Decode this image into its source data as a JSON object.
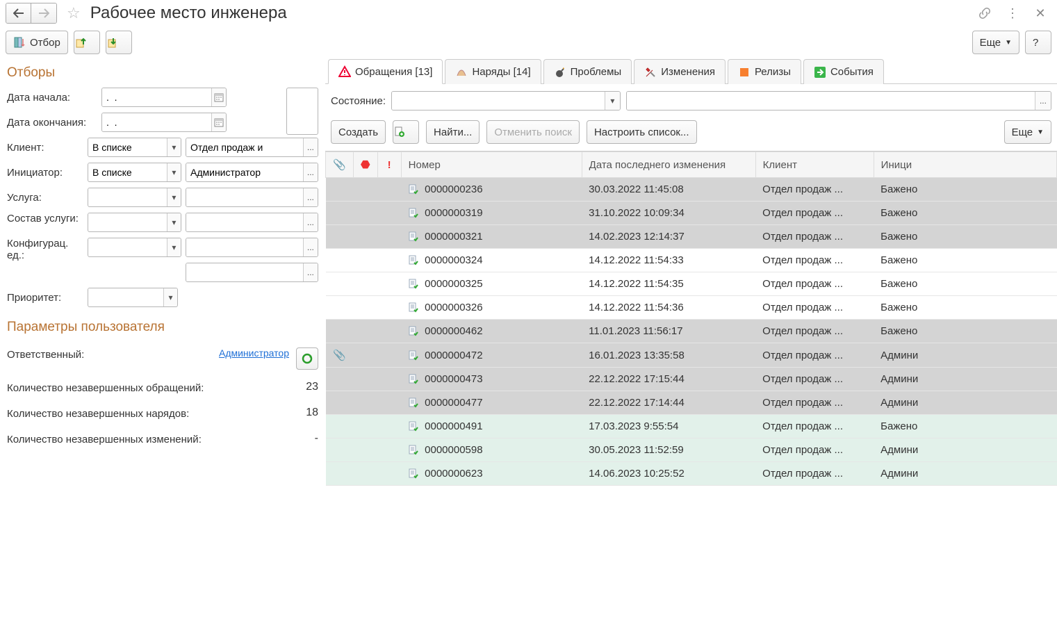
{
  "header": {
    "title": "Рабочее место инженера"
  },
  "toolbar": {
    "filter_btn": "Отбор",
    "more_btn": "Еще",
    "help_btn": "?"
  },
  "filters": {
    "section_title": "Отборы",
    "start_date_label": "Дата начала:",
    "start_date_value": ".  .",
    "end_date_label": "Дата окончания:",
    "end_date_value": ".  .",
    "client_label": "Клиент:",
    "client_mode": "В списке",
    "client_value": "Отдел продаж и",
    "initiator_label": "Инициатор:",
    "initiator_mode": "В списке",
    "initiator_value": "Администратор",
    "service_label": "Услуга:",
    "service_comp_label": "Состав услуги:",
    "config_label": "Конфигурац. ед.:",
    "priority_label": "Приоритет:"
  },
  "params": {
    "section_title": "Параметры пользователя",
    "responsible_label": "Ответственный:",
    "responsible_value": "Администратор",
    "open_tickets_label": "Количество незавершенных обращений:",
    "open_tickets_value": "23",
    "open_orders_label": "Количество незавершенных нарядов:",
    "open_orders_value": "18",
    "open_changes_label": "Количество незавершенных изменений:",
    "open_changes_value": "-"
  },
  "tabs": {
    "tickets": "Обращения [13]",
    "orders": "Наряды [14]",
    "problems": "Проблемы",
    "changes": "Изменения",
    "releases": "Релизы",
    "events": "События"
  },
  "status_bar": {
    "label": "Состояние:"
  },
  "actions": {
    "create": "Создать",
    "find": "Найти...",
    "cancel_search": "Отменить поиск",
    "configure_list": "Настроить список...",
    "more": "Еще"
  },
  "table": {
    "headers": {
      "number": "Номер",
      "last_modified": "Дата последнего изменения",
      "client": "Клиент",
      "initiator": "Иници"
    },
    "rows": [
      {
        "clip": "",
        "num": "0000000236",
        "date": "30.03.2022 11:45:08",
        "client": "Отдел продаж ...",
        "init": "Бажено",
        "cls": "gray"
      },
      {
        "clip": "",
        "num": "0000000319",
        "date": "31.10.2022 10:09:34",
        "client": "Отдел продаж ...",
        "init": "Бажено",
        "cls": "gray"
      },
      {
        "clip": "",
        "num": "0000000321",
        "date": "14.02.2023 12:14:37",
        "client": "Отдел продаж ...",
        "init": "Бажено",
        "cls": "gray"
      },
      {
        "clip": "",
        "num": "0000000324",
        "date": "14.12.2022 11:54:33",
        "client": "Отдел продаж ...",
        "init": "Бажено",
        "cls": "white"
      },
      {
        "clip": "",
        "num": "0000000325",
        "date": "14.12.2022 11:54:35",
        "client": "Отдел продаж ...",
        "init": "Бажено",
        "cls": "white"
      },
      {
        "clip": "",
        "num": "0000000326",
        "date": "14.12.2022 11:54:36",
        "client": "Отдел продаж ...",
        "init": "Бажено",
        "cls": "white"
      },
      {
        "clip": "",
        "num": "0000000462",
        "date": "11.01.2023 11:56:17",
        "client": "Отдел продаж ...",
        "init": "Бажено",
        "cls": "gray"
      },
      {
        "clip": "📎",
        "num": "0000000472",
        "date": "16.01.2023 13:35:58",
        "client": "Отдел продаж ...",
        "init": "Админи",
        "cls": "gray"
      },
      {
        "clip": "",
        "num": "0000000473",
        "date": "22.12.2022 17:15:44",
        "client": "Отдел продаж ...",
        "init": "Админи",
        "cls": "gray"
      },
      {
        "clip": "",
        "num": "0000000477",
        "date": "22.12.2022 17:14:44",
        "client": "Отдел продаж ...",
        "init": "Админи",
        "cls": "gray"
      },
      {
        "clip": "",
        "num": "0000000491",
        "date": "17.03.2023 9:55:54",
        "client": "Отдел продаж ...",
        "init": "Бажено",
        "cls": "mint"
      },
      {
        "clip": "",
        "num": "0000000598",
        "date": "30.05.2023 11:52:59",
        "client": "Отдел продаж ...",
        "init": "Админи",
        "cls": "mint"
      },
      {
        "clip": "",
        "num": "0000000623",
        "date": "14.06.2023 10:25:52",
        "client": "Отдел продаж ...",
        "init": "Админи",
        "cls": "mint"
      }
    ]
  }
}
